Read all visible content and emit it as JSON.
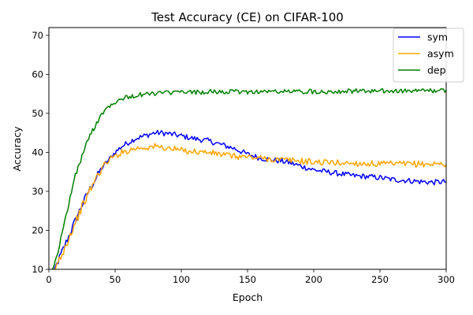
{
  "chart_data": {
    "type": "line",
    "title": "Test Accuracy (CE) on CIFAR-100",
    "xlabel": "Epoch",
    "ylabel": "Accuracy",
    "xlim": [
      0,
      300
    ],
    "ylim": [
      10,
      72
    ],
    "xticks": [
      0,
      50,
      100,
      150,
      200,
      250,
      300
    ],
    "yticks": [
      10,
      20,
      30,
      40,
      50,
      60,
      70
    ],
    "grid": false,
    "legend_position": "top-right",
    "x": [
      1,
      5,
      10,
      15,
      20,
      25,
      30,
      35,
      40,
      45,
      50,
      55,
      60,
      65,
      70,
      75,
      80,
      85,
      90,
      95,
      100,
      110,
      120,
      130,
      140,
      150,
      160,
      170,
      180,
      190,
      200,
      210,
      220,
      230,
      240,
      250,
      260,
      270,
      280,
      290,
      300
    ],
    "series": [
      {
        "name": "sym",
        "color": "#0000ff",
        "values": [
          8.5,
          10.5,
          14.5,
          18.5,
          22.5,
          26.5,
          30.0,
          33.0,
          36.0,
          38.0,
          40.0,
          41.5,
          42.5,
          43.5,
          44.0,
          44.5,
          45.0,
          45.0,
          44.8,
          44.5,
          44.2,
          43.5,
          43.0,
          42.0,
          41.0,
          39.5,
          38.5,
          38.0,
          37.5,
          36.5,
          35.5,
          35.0,
          34.5,
          34.0,
          33.8,
          33.5,
          33.0,
          32.8,
          32.5,
          32.3,
          32.5
        ]
      },
      {
        "name": "asym",
        "color": "#ffa500",
        "values": [
          8.5,
          10.5,
          14.0,
          18.0,
          22.0,
          26.0,
          29.5,
          33.0,
          36.0,
          38.0,
          39.0,
          40.0,
          40.5,
          41.0,
          41.2,
          41.3,
          41.5,
          41.3,
          41.0,
          40.8,
          40.5,
          40.2,
          40.0,
          39.5,
          39.0,
          38.8,
          38.5,
          38.2,
          38.0,
          37.8,
          37.5,
          37.4,
          37.3,
          37.2,
          37.1,
          37.0,
          37.0,
          37.0,
          37.0,
          37.0,
          37.0
        ]
      },
      {
        "name": "dep",
        "color": "#008000",
        "values": [
          8.5,
          12.0,
          19.0,
          27.0,
          34.0,
          39.0,
          43.5,
          47.0,
          50.0,
          51.8,
          53.0,
          53.8,
          54.2,
          54.5,
          54.8,
          55.0,
          55.1,
          55.2,
          55.3,
          55.3,
          55.4,
          55.4,
          55.5,
          55.5,
          55.5,
          55.5,
          55.6,
          55.6,
          55.6,
          55.6,
          55.6,
          55.6,
          55.7,
          55.7,
          55.7,
          55.7,
          55.7,
          55.7,
          55.8,
          55.8,
          55.8
        ]
      }
    ]
  }
}
